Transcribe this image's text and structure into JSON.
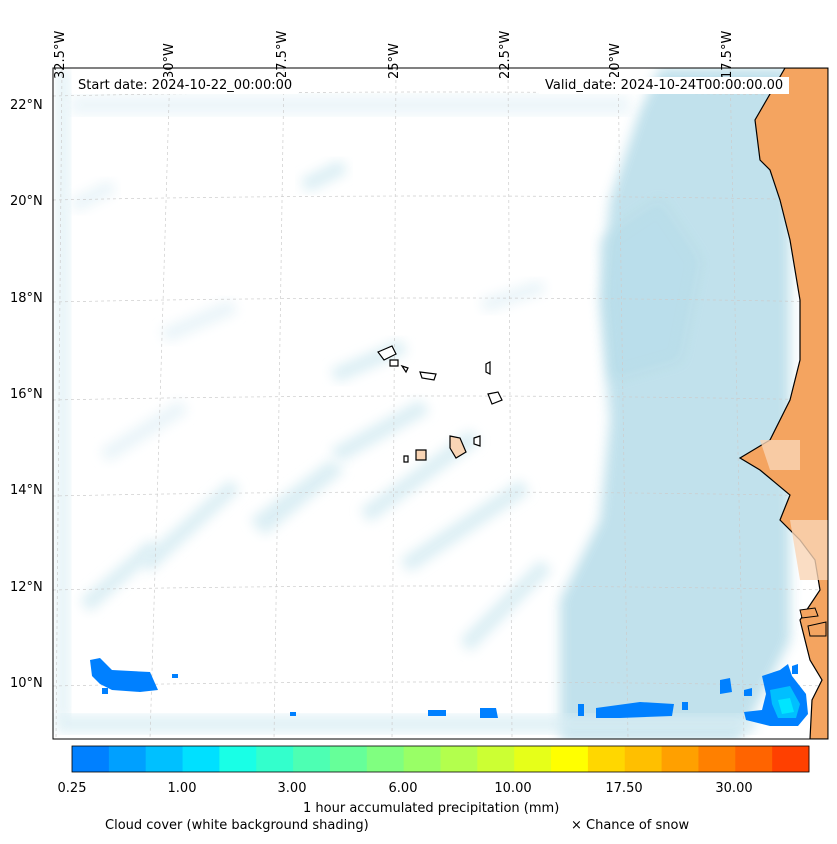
{
  "map": {
    "start_date": "Start date: 2024-10-22_00:00:00",
    "valid_date": "Valid_date: 2024-10-24T00:00:00.00",
    "lon_labels": [
      "32.5°W",
      "30°W",
      "27.5°W",
      "25°W",
      "22.5°W",
      "20°W",
      "17.5°W"
    ],
    "lat_labels": [
      "22°N",
      "20°N",
      "18°N",
      "16°N",
      "14°N",
      "12°N",
      "10°N"
    ],
    "colors": {
      "land": "#f4a460",
      "land_light": "#f9d5b5",
      "cloud": "#add8e6",
      "precip_low": "#0080ff",
      "precip_mid": "#00bfff",
      "precip_high": "#00e5ff"
    }
  },
  "colorbar": {
    "title": "1 hour accumulated precipitation (mm)",
    "tick_labels": [
      "0.25",
      "1.00",
      "3.00",
      "6.00",
      "10.00",
      "17.50",
      "30.00"
    ],
    "colors": [
      "#0080ff",
      "#00a0ff",
      "#00c0ff",
      "#00e0ff",
      "#19ffe6",
      "#33ffcc",
      "#4dffb3",
      "#66ff99",
      "#80ff80",
      "#99ff66",
      "#b3ff4d",
      "#ccff33",
      "#e6ff19",
      "#ffff00",
      "#ffd700",
      "#ffbf00",
      "#ffa000",
      "#ff8000",
      "#ff6400",
      "#ff4000"
    ]
  },
  "captions": {
    "cloud": "Cloud cover (white background shading)",
    "snow": "× Chance of snow"
  }
}
